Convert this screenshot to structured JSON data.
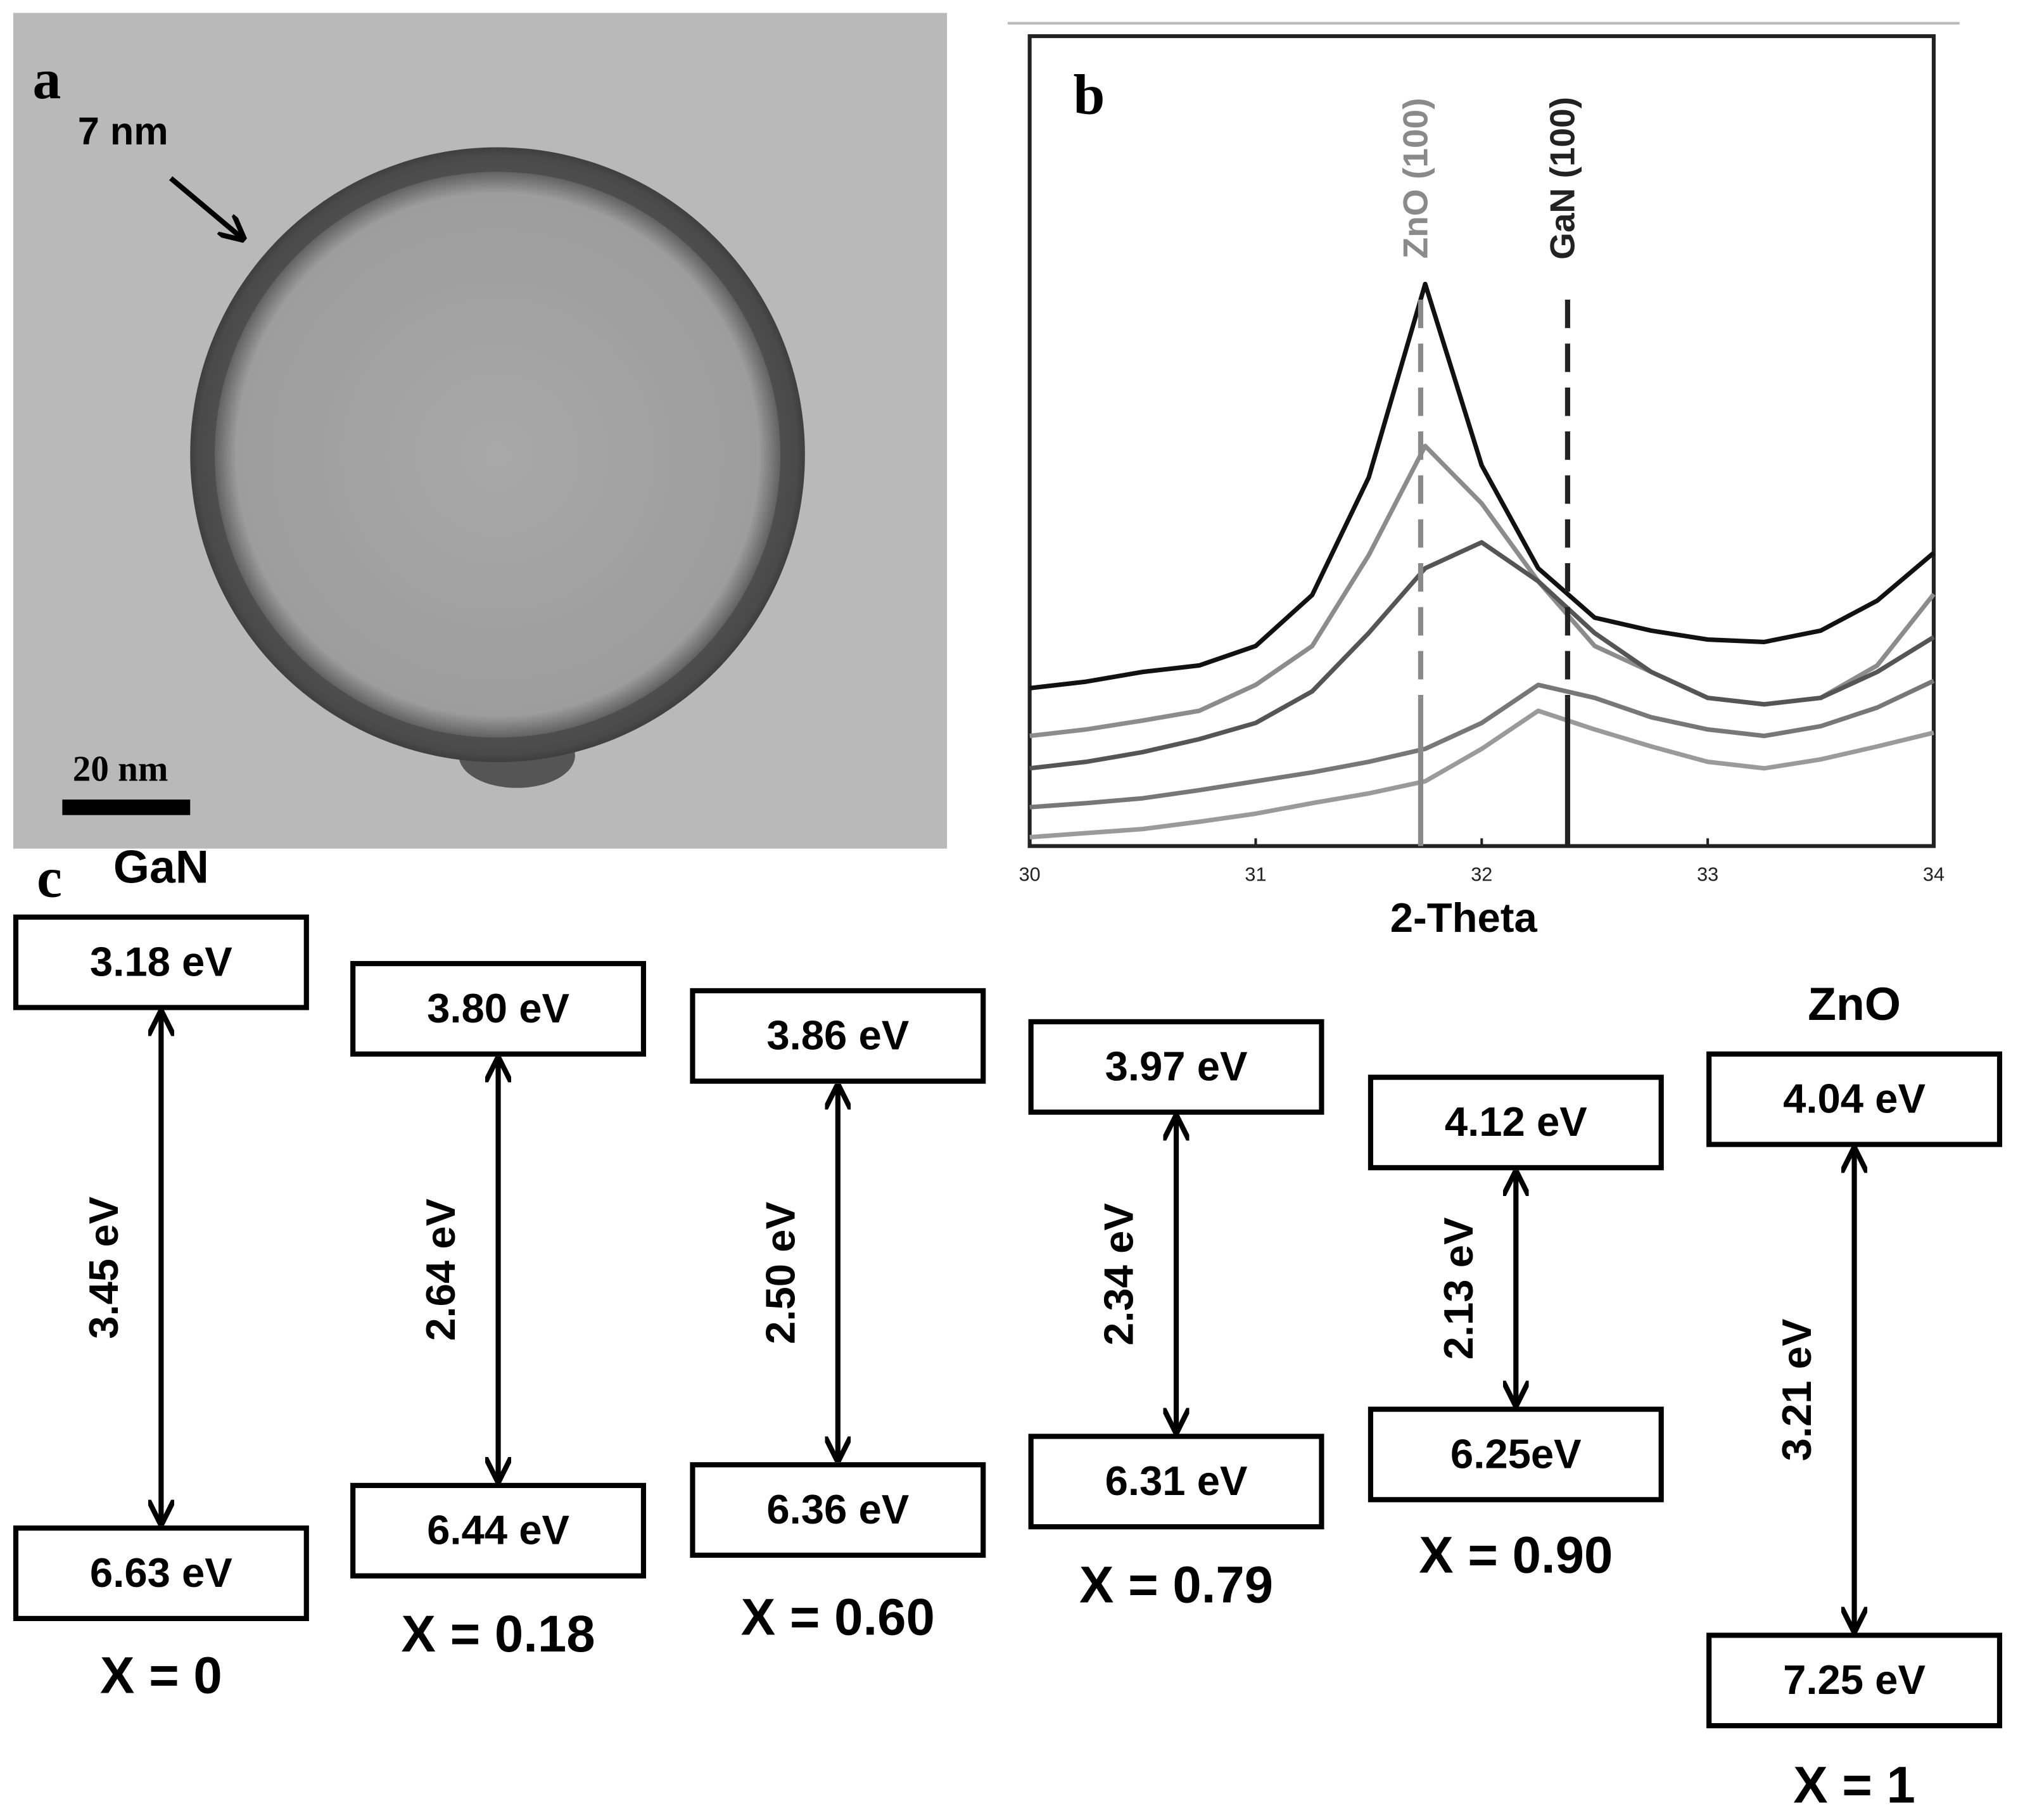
{
  "panel_a": {
    "label": "a",
    "annotation": "7 nm",
    "scale_bar_label": "20 nm"
  },
  "chart_data": {
    "type": "line",
    "panel_label": "b",
    "x_label": "2-Theta",
    "x": [
      30,
      30.25,
      30.5,
      30.75,
      31,
      31.25,
      31.5,
      31.75,
      32,
      32.25,
      32.5,
      32.75,
      33,
      33.25,
      33.5,
      33.75,
      34
    ],
    "xlim": [
      30,
      34
    ],
    "xticks": [
      30,
      31,
      32,
      33,
      34
    ],
    "ylim": [
      0,
      100
    ],
    "series": [
      {
        "color": "#111111",
        "values": [
          19.5,
          20.3,
          21.5,
          22.3,
          24.7,
          31,
          45.5,
          69.4,
          47,
          34.3,
          28.2,
          26.6,
          25.5,
          25.2,
          26.6,
          30.3,
          36.2
        ]
      },
      {
        "color": "#8c8c8c",
        "values": [
          13.6,
          14.4,
          15.5,
          16.7,
          19.9,
          24.7,
          35.9,
          49.4,
          42.3,
          32.7,
          24.7,
          21.5,
          18.3,
          17.5,
          18.3,
          22.3,
          31.1
        ]
      },
      {
        "color": "#555555",
        "values": [
          9.6,
          10.4,
          11.6,
          13.2,
          15.2,
          19.1,
          26.3,
          34.3,
          37.5,
          32.7,
          26.3,
          21.5,
          18.3,
          17.5,
          18.3,
          21.5,
          25.8
        ]
      },
      {
        "color": "#777777",
        "values": [
          4.8,
          5.3,
          5.9,
          6.9,
          8.0,
          9.1,
          10.4,
          12.0,
          15.2,
          19.9,
          18.3,
          15.9,
          14.4,
          13.6,
          14.8,
          17.1,
          20.4
        ]
      },
      {
        "color": "#9a9a9a",
        "values": [
          1.1,
          1.6,
          2.1,
          3.0,
          4.0,
          5.3,
          6.5,
          8.0,
          12.0,
          16.7,
          14.4,
          12.3,
          10.4,
          9.6,
          10.7,
          12.3,
          14.0
        ]
      }
    ],
    "reference_lines": [
      {
        "label": "ZnO (100)",
        "x": 31.73,
        "color": "#8a8a8a"
      },
      {
        "label": "GaN (100)",
        "x": 32.38,
        "color": "#222222"
      }
    ]
  },
  "panel_c": {
    "label": "c",
    "columns": [
      {
        "material": "GaN",
        "top": "3.18 eV",
        "gap": "3.45 eV",
        "bottom": "6.63 eV",
        "composition": "X = 0"
      },
      {
        "top": "3.80 eV",
        "gap": "2.64 eV",
        "bottom": "6.44 eV",
        "composition": "X = 0.18"
      },
      {
        "top": "3.86 eV",
        "gap": "2.50 eV",
        "bottom": "6.36 eV",
        "composition": "X = 0.60"
      },
      {
        "top": "3.97 eV",
        "gap": "2.34 eV",
        "bottom": "6.31 eV",
        "composition": "X = 0.79"
      },
      {
        "top": "4.12 eV",
        "gap": "2.13 eV",
        "bottom": "6.25eV",
        "composition": "X = 0.90"
      },
      {
        "material": "ZnO",
        "top": "4.04 eV",
        "gap": "3.21 eV",
        "bottom": "7.25 eV",
        "composition": "X = 1"
      }
    ]
  }
}
